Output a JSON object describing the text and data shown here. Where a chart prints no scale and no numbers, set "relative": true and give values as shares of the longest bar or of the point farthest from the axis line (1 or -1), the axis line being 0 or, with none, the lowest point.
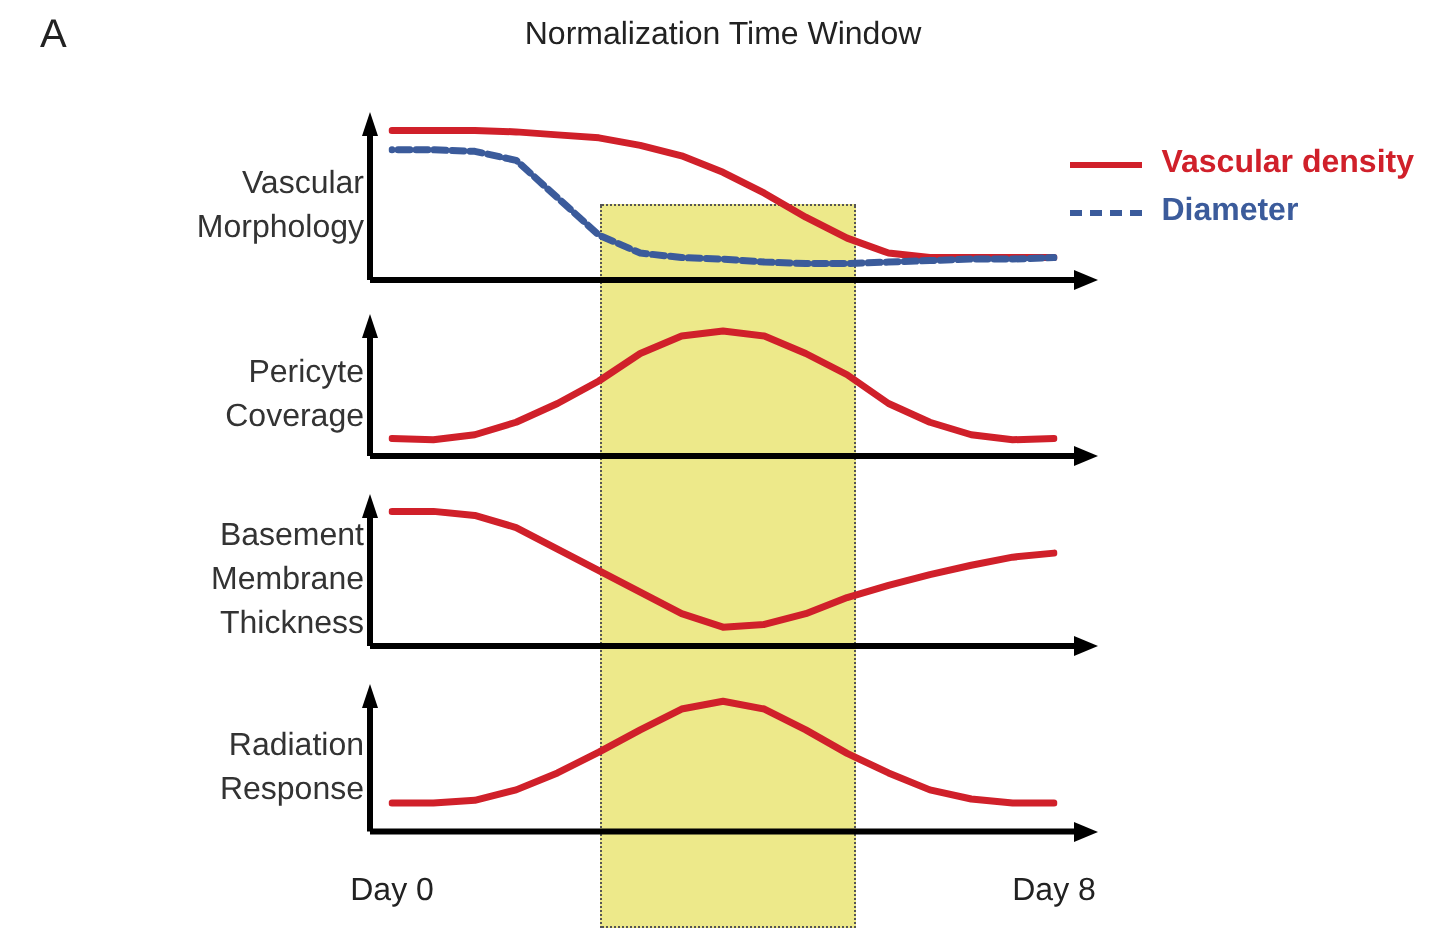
{
  "chart_data": [
    {
      "type": "line",
      "title": "Normalization Time Window",
      "ylabel": "Vascular Morphology",
      "relative": true,
      "legend": "top right",
      "tick_labels": false,
      "annotations": [
        "A"
      ],
      "categories": [
        null,
        null,
        null,
        null,
        null,
        null,
        null,
        null,
        null,
        null,
        null,
        null,
        null,
        null,
        null,
        null,
        null
      ],
      "series": [
        {
          "name": "Vascular density",
          "color": "#d0202a",
          "line_style": "solid",
          "values": [
            1.0,
            1.0,
            1.0,
            0.99,
            0.97,
            0.95,
            0.9,
            0.83,
            0.72,
            0.58,
            0.42,
            0.28,
            0.18,
            0.15,
            0.15,
            0.15,
            0.15
          ]
        },
        {
          "name": "Diameter",
          "color": "#3b5b9b",
          "line_style": "dashed",
          "values": [
            0.87,
            0.87,
            0.86,
            0.8,
            0.55,
            0.3,
            0.18,
            0.15,
            0.14,
            0.12,
            0.11,
            0.11,
            0.12,
            0.13,
            0.14,
            0.14,
            0.15
          ]
        }
      ]
    },
    {
      "type": "line",
      "ylabel": "Pericyte Coverage",
      "relative": true,
      "tick_labels": false,
      "categories": [
        null,
        null,
        null,
        null,
        null,
        null,
        null,
        null,
        null,
        null,
        null,
        null,
        null,
        null,
        null,
        null,
        null
      ],
      "series": [
        {
          "color": "#d0202a",
          "line_style": "solid",
          "values": [
            0.14,
            0.13,
            0.17,
            0.27,
            0.42,
            0.6,
            0.82,
            0.96,
            1.0,
            0.96,
            0.82,
            0.65,
            0.42,
            0.27,
            0.17,
            0.13,
            0.14
          ]
        }
      ]
    },
    {
      "type": "line",
      "ylabel": "Basement Membrane Thickness",
      "relative": true,
      "tick_labels": false,
      "categories": [
        null,
        null,
        null,
        null,
        null,
        null,
        null,
        null,
        null,
        null,
        null,
        null,
        null,
        null,
        null,
        null,
        null
      ],
      "series": [
        {
          "color": "#d0202a",
          "line_style": "solid",
          "values": [
            1.0,
            1.0,
            0.97,
            0.88,
            0.72,
            0.56,
            0.4,
            0.24,
            0.14,
            0.16,
            0.24,
            0.36,
            0.45,
            0.53,
            0.6,
            0.66,
            0.69
          ]
        }
      ]
    },
    {
      "type": "line",
      "ylabel": "Radiation Response",
      "relative": true,
      "categories": [
        "Day 0",
        null,
        null,
        null,
        null,
        null,
        null,
        null,
        null,
        null,
        null,
        null,
        null,
        null,
        null,
        null,
        "Day 8"
      ],
      "series": [
        {
          "color": "#d0202a",
          "line_style": "solid",
          "values": [
            0.22,
            0.22,
            0.24,
            0.32,
            0.45,
            0.61,
            0.78,
            0.94,
            1.0,
            0.94,
            0.78,
            0.6,
            0.45,
            0.32,
            0.25,
            0.22,
            0.22
          ]
        }
      ]
    }
  ]
}
